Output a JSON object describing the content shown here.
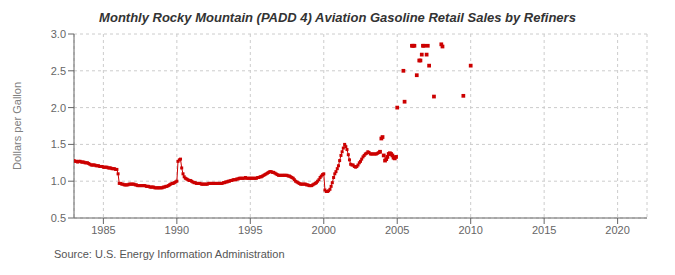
{
  "chart_data": {
    "type": "line",
    "title": "Monthly Rocky Mountain (PADD 4) Aviation Gasoline Retail Sales by Refiners",
    "ylabel": "Dollars per Gallon",
    "annotations": [
      "Source: U.S. Energy Information Administration"
    ],
    "xlim": [
      1983,
      2022
    ],
    "ylim": [
      0.5,
      3.0
    ],
    "xticks": [
      1985,
      1990,
      1995,
      2000,
      2005,
      2010,
      2015,
      2020
    ],
    "yticks": [
      0.5,
      {
        "value": 1.0,
        "label": "1.0"
      },
      1.5,
      {
        "value": 2.0,
        "label": "2.0"
      },
      2.5,
      {
        "value": 3.0,
        "label": "3.0"
      }
    ],
    "grid": true,
    "series": [
      {
        "type": "line",
        "color": "#cc0000",
        "marker": "square",
        "x": [
          1983.0,
          1983.08,
          1983.17,
          1983.25,
          1983.33,
          1983.42,
          1983.5,
          1983.58,
          1983.67,
          1983.75,
          1983.83,
          1983.92,
          1984.0,
          1984.08,
          1984.17,
          1984.25,
          1984.33,
          1984.42,
          1984.5,
          1984.58,
          1984.67,
          1984.75,
          1984.83,
          1984.92,
          1985.0,
          1985.08,
          1985.17,
          1985.25,
          1985.33,
          1985.42,
          1985.5,
          1985.58,
          1985.67,
          1985.75,
          1985.83,
          1985.92,
          1986.0,
          1986.08,
          1986.17,
          1986.25,
          1986.33,
          1986.42,
          1986.5,
          1986.58,
          1986.67,
          1986.75,
          1986.83,
          1986.92,
          1987.0,
          1987.08,
          1987.17,
          1987.25,
          1987.33,
          1987.42,
          1987.5,
          1987.58,
          1987.67,
          1987.75,
          1987.83,
          1987.92,
          1988.0,
          1988.08,
          1988.17,
          1988.25,
          1988.33,
          1988.42,
          1988.5,
          1988.58,
          1988.67,
          1988.75,
          1988.83,
          1988.92,
          1989.0,
          1989.08,
          1989.17,
          1989.25,
          1989.33,
          1989.42,
          1989.5,
          1989.58,
          1989.67,
          1989.75,
          1989.83,
          1989.92,
          1990.0,
          1990.08,
          1990.17,
          1990.25,
          1990.33,
          1990.42,
          1990.5,
          1990.58,
          1990.67,
          1990.75,
          1990.83,
          1990.92,
          1991.0,
          1991.08,
          1991.17,
          1991.25,
          1991.33,
          1991.42,
          1991.5,
          1991.58,
          1991.67,
          1991.75,
          1991.83,
          1991.92,
          1992.0,
          1992.08,
          1992.17,
          1992.25,
          1992.33,
          1992.42,
          1992.5,
          1992.58,
          1992.67,
          1992.75,
          1992.83,
          1992.92,
          1993.0,
          1993.08,
          1993.17,
          1993.25,
          1993.33,
          1993.42,
          1993.5,
          1993.58,
          1993.67,
          1993.75,
          1993.83,
          1993.92,
          1994.0,
          1994.08,
          1994.17,
          1994.25,
          1994.33,
          1994.42,
          1994.5,
          1994.58,
          1994.67,
          1994.75,
          1994.83,
          1994.92,
          1995.0,
          1995.08,
          1995.17,
          1995.25,
          1995.33,
          1995.42,
          1995.5,
          1995.58,
          1995.67,
          1995.75,
          1995.83,
          1995.92,
          1996.0,
          1996.08,
          1996.17,
          1996.25,
          1996.33,
          1996.42,
          1996.5,
          1996.58,
          1996.67,
          1996.75,
          1996.83,
          1996.92,
          1997.0,
          1997.08,
          1997.17,
          1997.25,
          1997.33,
          1997.42,
          1997.5,
          1997.58,
          1997.67,
          1997.75,
          1997.83,
          1997.92,
          1998.0,
          1998.08,
          1998.17,
          1998.25,
          1998.33,
          1998.42,
          1998.5,
          1998.58,
          1998.67,
          1998.75,
          1998.83,
          1998.92,
          1999.0,
          1999.08,
          1999.17,
          1999.25,
          1999.33,
          1999.42,
          1999.5,
          1999.58,
          1999.67,
          1999.75,
          1999.83,
          1999.92,
          2000.0,
          2000.08,
          2000.17,
          2000.25,
          2000.33,
          2000.42,
          2000.5,
          2000.58,
          2000.67,
          2000.75,
          2000.83,
          2000.92,
          2001.0,
          2001.08,
          2001.17,
          2001.25,
          2001.33,
          2001.42,
          2001.5,
          2001.58,
          2001.67,
          2001.75,
          2001.83,
          2001.92,
          2002.0,
          2002.08,
          2002.17,
          2002.25,
          2002.33,
          2002.42,
          2002.5,
          2002.58,
          2002.67,
          2002.75,
          2002.83,
          2002.92,
          2003.0,
          2003.08,
          2003.17,
          2003.25,
          2003.33,
          2003.42,
          2003.5,
          2003.58,
          2003.67,
          2003.75
        ],
        "values": [
          1.28,
          1.27,
          1.27,
          1.26,
          1.27,
          1.27,
          1.26,
          1.26,
          1.26,
          1.25,
          1.25,
          1.25,
          1.24,
          1.23,
          1.22,
          1.22,
          1.22,
          1.22,
          1.21,
          1.21,
          1.21,
          1.2,
          1.2,
          1.2,
          1.19,
          1.19,
          1.19,
          1.19,
          1.18,
          1.18,
          1.18,
          1.17,
          1.17,
          1.17,
          1.16,
          1.16,
          1.1,
          0.97,
          0.97,
          0.96,
          0.96,
          0.95,
          0.95,
          0.95,
          0.95,
          0.96,
          0.96,
          0.96,
          0.96,
          0.96,
          0.95,
          0.95,
          0.94,
          0.94,
          0.94,
          0.94,
          0.94,
          0.94,
          0.94,
          0.93,
          0.93,
          0.93,
          0.92,
          0.92,
          0.92,
          0.92,
          0.91,
          0.91,
          0.91,
          0.91,
          0.91,
          0.91,
          0.91,
          0.92,
          0.92,
          0.93,
          0.93,
          0.94,
          0.95,
          0.96,
          0.97,
          0.97,
          0.98,
          0.99,
          1.0,
          1.27,
          1.29,
          1.3,
          1.18,
          1.1,
          1.06,
          1.04,
          1.03,
          1.02,
          1.01,
          1.01,
          1.0,
          0.99,
          0.98,
          0.98,
          0.97,
          0.97,
          0.97,
          0.97,
          0.96,
          0.96,
          0.96,
          0.96,
          0.96,
          0.96,
          0.97,
          0.97,
          0.97,
          0.97,
          0.97,
          0.97,
          0.97,
          0.97,
          0.97,
          0.97,
          0.97,
          0.97,
          0.98,
          0.98,
          0.99,
          0.99,
          1.0,
          1.0,
          1.01,
          1.01,
          1.02,
          1.02,
          1.02,
          1.03,
          1.03,
          1.04,
          1.04,
          1.04,
          1.04,
          1.04,
          1.05,
          1.04,
          1.04,
          1.04,
          1.04,
          1.04,
          1.04,
          1.04,
          1.04,
          1.04,
          1.05,
          1.05,
          1.06,
          1.06,
          1.07,
          1.08,
          1.09,
          1.1,
          1.11,
          1.12,
          1.13,
          1.13,
          1.12,
          1.12,
          1.11,
          1.1,
          1.09,
          1.08,
          1.08,
          1.08,
          1.08,
          1.08,
          1.08,
          1.08,
          1.08,
          1.07,
          1.07,
          1.06,
          1.05,
          1.04,
          1.02,
          1.0,
          0.99,
          0.98,
          0.97,
          0.96,
          0.96,
          0.96,
          0.96,
          0.96,
          0.95,
          0.95,
          0.94,
          0.94,
          0.94,
          0.95,
          0.96,
          0.97,
          0.98,
          1.0,
          1.02,
          1.05,
          1.07,
          1.09,
          1.1,
          0.88,
          0.86,
          0.86,
          0.87,
          0.89,
          0.93,
          0.98,
          1.05,
          1.1,
          1.13,
          1.17,
          1.21,
          1.28,
          1.35,
          1.4,
          1.45,
          1.5,
          1.47,
          1.43,
          1.36,
          1.29,
          1.23,
          1.22,
          1.22,
          1.2,
          1.19,
          1.2,
          1.22,
          1.25,
          1.27,
          1.3,
          1.33,
          1.35,
          1.37,
          1.38,
          1.4,
          1.39,
          1.37,
          1.37,
          1.37,
          1.37,
          1.37,
          1.37,
          1.38,
          1.39
        ]
      },
      {
        "type": "scatter",
        "color": "#cc0000",
        "marker": "square",
        "x": [
          2003.83,
          2003.92,
          2004.0,
          2004.08,
          2004.17,
          2004.25,
          2004.33,
          2004.42,
          2004.5,
          2004.58,
          2004.67,
          2004.75,
          2004.83,
          2004.92,
          2005.0,
          2005.42,
          2005.5,
          2006.0,
          2006.08,
          2006.17,
          2006.33,
          2006.5,
          2006.58,
          2006.67,
          2006.75,
          2006.83,
          2007.0,
          2007.08,
          2007.17,
          2007.5,
          2008.0,
          2008.08,
          2009.5,
          2010.0
        ],
        "values": [
          1.4,
          1.58,
          1.6,
          1.35,
          1.28,
          1.3,
          1.33,
          1.37,
          1.38,
          1.37,
          1.35,
          1.32,
          1.31,
          1.33,
          2.0,
          2.5,
          2.08,
          2.84,
          2.84,
          2.84,
          2.44,
          2.64,
          2.64,
          2.72,
          2.84,
          2.84,
          2.72,
          2.84,
          2.57,
          2.15,
          2.86,
          2.83,
          2.16,
          2.57
        ]
      }
    ]
  }
}
